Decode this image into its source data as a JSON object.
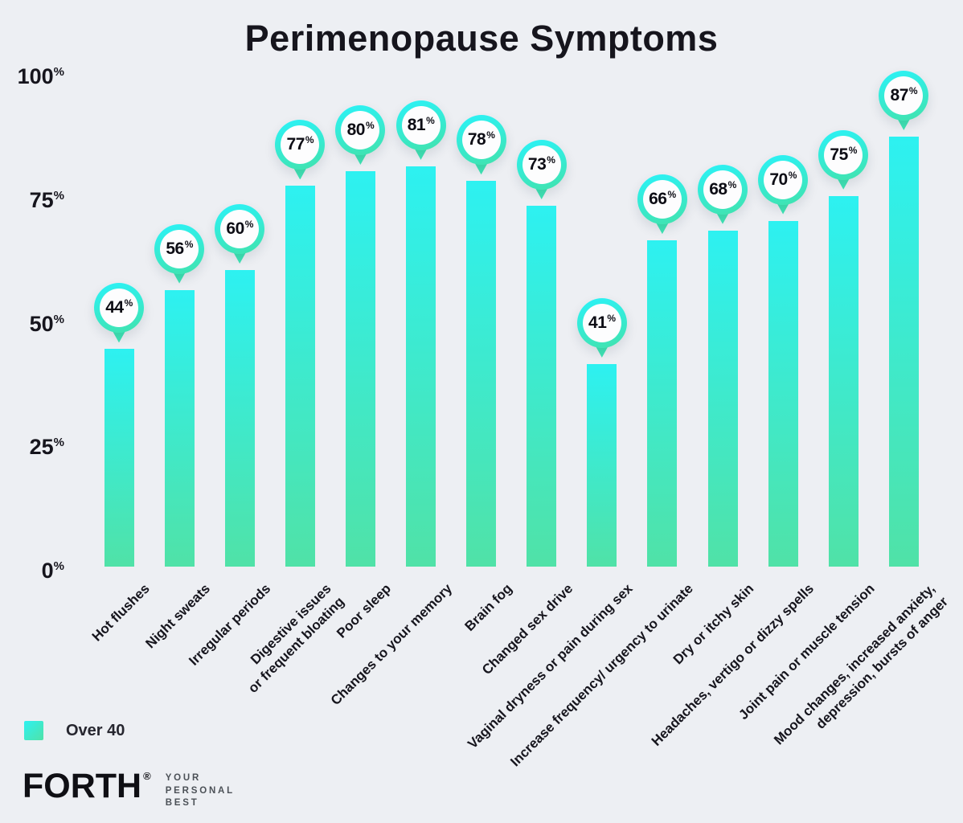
{
  "title": "Perimenopause Symptoms",
  "legend": {
    "label": "Over 40"
  },
  "logo": {
    "brand": "FORTH",
    "registered_mark": "®",
    "tagline": "YOUR\nPERSONAL\nBEST"
  },
  "colors": {
    "background": "#EDEFF3",
    "bar_top": "#2DF1F1",
    "bar_bottom": "#50E2A7",
    "pin_tail": "#3FE4B4",
    "text": "#16151D"
  },
  "chart_data": {
    "type": "bar",
    "title": "Perimenopause Symptoms",
    "categories": [
      "Hot flushes",
      "Night sweats",
      "Irregular periods",
      "Digestive issues\nor frequent bloating",
      "Poor sleep",
      "Changes to your memory",
      "Brain fog",
      "Changed sex drive",
      "Vaginal dryness or pain during sex",
      "Increase frequency/ urgency to urinate",
      "Dry or itchy skin",
      "Headaches, vertigo or dizzy spells",
      "Joint pain or muscle tension",
      "Mood changes, increased anxiety,\ndepression, bursts of anger"
    ],
    "series": [
      {
        "name": "Over 40",
        "values": [
          44,
          56,
          60,
          77,
          80,
          81,
          78,
          73,
          41,
          66,
          68,
          70,
          75,
          87
        ]
      }
    ],
    "value_suffix": "%",
    "xlabel": "",
    "ylabel": "",
    "ylim": [
      0,
      100
    ],
    "yticks": [
      0,
      25,
      50,
      75,
      100
    ],
    "ytick_suffix": "%",
    "grid": false,
    "legend_position": "bottom-left",
    "bar_labels": "pin-markers-above-bars"
  }
}
